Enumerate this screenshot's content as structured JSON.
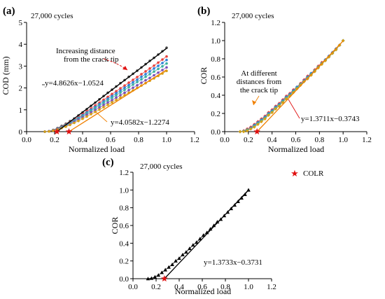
{
  "chart_data": [
    {
      "panel": "(a)",
      "type": "scatter",
      "note": "27,000 cycles",
      "xlabel": "Normalized load",
      "ylabel": "COD (mm)",
      "xlim": [
        0.0,
        1.2
      ],
      "ylim": [
        0,
        5
      ],
      "xticks": [
        "0.0",
        "0.2",
        "0.4",
        "0.6",
        "0.8",
        "1.0",
        "1.2"
      ],
      "yticks": [
        "0",
        "1",
        "2",
        "3",
        "4",
        "5"
      ],
      "x": [
        0.13,
        0.16,
        0.19,
        0.22,
        0.25,
        0.28,
        0.31,
        0.34,
        0.37,
        0.4,
        0.43,
        0.46,
        0.49,
        0.52,
        0.55,
        0.58,
        0.61,
        0.64,
        0.67,
        0.7,
        0.73,
        0.76,
        0.79,
        0.82,
        0.85,
        0.88,
        0.91,
        0.94,
        0.97,
        1.0
      ],
      "series": [
        {
          "color": "#444444",
          "values": [
            0.0,
            0.02,
            0.08,
            0.16,
            0.26,
            0.36,
            0.48,
            0.6,
            0.74,
            0.88,
            1.03,
            1.18,
            1.33,
            1.48,
            1.63,
            1.78,
            1.92,
            2.07,
            2.22,
            2.36,
            2.51,
            2.65,
            2.79,
            2.94,
            3.09,
            3.24,
            3.38,
            3.53,
            3.68,
            3.84
          ]
        },
        {
          "color": "#e8413c",
          "values": [
            0.0,
            0.02,
            0.07,
            0.14,
            0.23,
            0.33,
            0.44,
            0.55,
            0.67,
            0.8,
            0.93,
            1.06,
            1.2,
            1.33,
            1.46,
            1.59,
            1.72,
            1.85,
            1.98,
            2.11,
            2.24,
            2.37,
            2.5,
            2.63,
            2.76,
            2.89,
            3.02,
            3.16,
            3.3,
            3.44
          ]
        },
        {
          "color": "#2f7fd8",
          "values": [
            0.0,
            0.02,
            0.07,
            0.13,
            0.22,
            0.31,
            0.41,
            0.52,
            0.63,
            0.75,
            0.88,
            1.0,
            1.13,
            1.26,
            1.38,
            1.51,
            1.63,
            1.76,
            1.88,
            2.01,
            2.13,
            2.26,
            2.38,
            2.51,
            2.63,
            2.76,
            2.89,
            3.01,
            3.14,
            3.28
          ]
        },
        {
          "color": "#3cb0a0",
          "values": [
            0.0,
            0.02,
            0.06,
            0.12,
            0.2,
            0.29,
            0.39,
            0.49,
            0.6,
            0.71,
            0.83,
            0.95,
            1.07,
            1.19,
            1.31,
            1.43,
            1.55,
            1.67,
            1.79,
            1.91,
            2.03,
            2.15,
            2.27,
            2.39,
            2.51,
            2.63,
            2.75,
            2.87,
            2.99,
            3.12
          ]
        },
        {
          "color": "#7b4fb8",
          "values": [
            0.0,
            0.02,
            0.06,
            0.11,
            0.18,
            0.26,
            0.35,
            0.45,
            0.55,
            0.66,
            0.77,
            0.88,
            0.99,
            1.1,
            1.22,
            1.33,
            1.44,
            1.56,
            1.67,
            1.78,
            1.9,
            2.01,
            2.12,
            2.24,
            2.35,
            2.46,
            2.58,
            2.7,
            2.82,
            2.94
          ]
        },
        {
          "color": "#d4a017",
          "values": [
            0.0,
            0.01,
            0.05,
            0.1,
            0.16,
            0.23,
            0.31,
            0.4,
            0.49,
            0.59,
            0.69,
            0.8,
            0.9,
            1.01,
            1.12,
            1.23,
            1.34,
            1.45,
            1.56,
            1.67,
            1.78,
            1.89,
            2.0,
            2.11,
            2.22,
            2.33,
            2.44,
            2.55,
            2.66,
            2.78
          ]
        }
      ],
      "fit_lines": [
        {
          "label": "y=4.8626x−1.0524",
          "slope": 4.8626,
          "intercept": -1.0524,
          "x_range": [
            0.2164,
            1.0
          ],
          "color": "#000000"
        },
        {
          "label": "y=4.0582x−1.2274",
          "slope": 4.0582,
          "intercept": -1.2274,
          "x_range": [
            0.3025,
            1.0
          ],
          "color": "#f08000"
        }
      ],
      "markers": [
        0.2164,
        0.3025
      ],
      "annotations": [
        "Increasing distance",
        "from the crack tip"
      ]
    },
    {
      "panel": "(b)",
      "type": "scatter",
      "note": "27,000 cycles",
      "xlabel": "Normalized load",
      "ylabel": "COR",
      "xlim": [
        0.0,
        1.2
      ],
      "ylim": [
        0.0,
        1.2
      ],
      "xticks": [
        "0.0",
        "0.2",
        "0.4",
        "0.6",
        "0.8",
        "1.0",
        "1.2"
      ],
      "yticks": [
        "0.0",
        "0.2",
        "0.4",
        "0.6",
        "0.8",
        "1.0",
        "1.2"
      ],
      "x": [
        0.13,
        0.16,
        0.19,
        0.22,
        0.25,
        0.28,
        0.31,
        0.34,
        0.37,
        0.4,
        0.43,
        0.46,
        0.49,
        0.52,
        0.55,
        0.58,
        0.61,
        0.64,
        0.67,
        0.7,
        0.73,
        0.76,
        0.79,
        0.82,
        0.85,
        0.88,
        0.91,
        0.94,
        0.97,
        1.0
      ],
      "series": [
        {
          "color": "#e8413c",
          "values": [
            0.0,
            0.01,
            0.03,
            0.05,
            0.08,
            0.11,
            0.14,
            0.17,
            0.21,
            0.24,
            0.28,
            0.31,
            0.35,
            0.39,
            0.42,
            0.46,
            0.49,
            0.53,
            0.57,
            0.61,
            0.64,
            0.68,
            0.72,
            0.76,
            0.79,
            0.83,
            0.87,
            0.91,
            0.95,
            1.0
          ]
        },
        {
          "color": "#2f7fd8",
          "values": [
            0.0,
            0.005,
            0.02,
            0.04,
            0.07,
            0.1,
            0.13,
            0.16,
            0.2,
            0.23,
            0.27,
            0.3,
            0.34,
            0.38,
            0.41,
            0.45,
            0.49,
            0.52,
            0.56,
            0.6,
            0.64,
            0.67,
            0.71,
            0.75,
            0.79,
            0.83,
            0.87,
            0.91,
            0.95,
            1.0
          ]
        },
        {
          "color": "#3cb0a0",
          "values": [
            0.0,
            0.005,
            0.02,
            0.03,
            0.06,
            0.09,
            0.12,
            0.15,
            0.19,
            0.22,
            0.26,
            0.29,
            0.33,
            0.37,
            0.4,
            0.44,
            0.48,
            0.52,
            0.55,
            0.59,
            0.63,
            0.67,
            0.71,
            0.75,
            0.78,
            0.82,
            0.86,
            0.9,
            0.95,
            1.0
          ]
        },
        {
          "color": "#d4a017",
          "values": [
            0.0,
            0.0,
            0.01,
            0.03,
            0.05,
            0.08,
            0.11,
            0.14,
            0.18,
            0.21,
            0.25,
            0.28,
            0.32,
            0.36,
            0.39,
            0.43,
            0.47,
            0.51,
            0.55,
            0.58,
            0.62,
            0.66,
            0.7,
            0.74,
            0.78,
            0.82,
            0.86,
            0.9,
            0.95,
            1.0
          ]
        }
      ],
      "fit_lines": [
        {
          "label": "y=1.3711x−0.3743",
          "slope": 1.3711,
          "intercept": -0.3743,
          "x_range": [
            0.273,
            1.0
          ],
          "color": "#f08000"
        }
      ],
      "markers": [
        0.273
      ],
      "annotations": [
        "At different",
        "distances from",
        "the crack tip"
      ]
    },
    {
      "panel": "(c)",
      "type": "scatter",
      "note": "27,000 cycles",
      "xlabel": "Normalized load",
      "ylabel": "COR",
      "xlim": [
        0.0,
        1.2
      ],
      "ylim": [
        0.0,
        1.2
      ],
      "xticks": [
        "0.0",
        "0.2",
        "0.4",
        "0.6",
        "0.8",
        "1.0",
        "1.2"
      ],
      "yticks": [
        "0.0",
        "0.2",
        "0.4",
        "0.6",
        "0.8",
        "1.0",
        "1.2"
      ],
      "x": [
        0.13,
        0.16,
        0.19,
        0.22,
        0.25,
        0.28,
        0.31,
        0.34,
        0.37,
        0.4,
        0.43,
        0.46,
        0.49,
        0.52,
        0.55,
        0.58,
        0.61,
        0.64,
        0.67,
        0.7,
        0.73,
        0.76,
        0.79,
        0.82,
        0.85,
        0.88,
        0.91,
        0.94,
        0.97,
        1.0
      ],
      "series": [
        {
          "color": "#000000",
          "values": [
            0.0,
            0.005,
            0.02,
            0.04,
            0.07,
            0.1,
            0.13,
            0.16,
            0.2,
            0.23,
            0.27,
            0.3,
            0.34,
            0.38,
            0.41,
            0.45,
            0.49,
            0.52,
            0.56,
            0.6,
            0.64,
            0.67,
            0.71,
            0.75,
            0.79,
            0.83,
            0.87,
            0.91,
            0.95,
            1.0
          ]
        }
      ],
      "fit_lines": [
        {
          "label": "y=1.3733x−0.3731",
          "slope": 1.3733,
          "intercept": -0.3731,
          "x_range": [
            0.2717,
            1.0
          ],
          "color": "#000000"
        }
      ],
      "markers": [
        0.2717
      ],
      "legend": "COLR"
    }
  ]
}
